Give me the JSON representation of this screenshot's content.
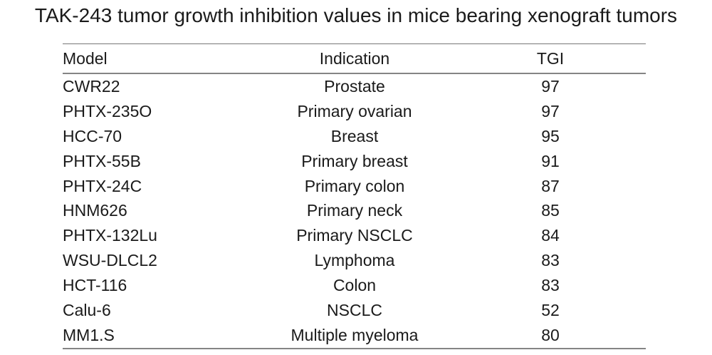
{
  "title": "TAK-243 tumor growth inhibition values in mice bearing xenograft tumors",
  "colors": {
    "background": "#ffffff",
    "text": "#1a1a1a",
    "rule_top": "#777777",
    "rule_heavy": "#858585"
  },
  "chart_data": {
    "type": "table",
    "title": "TAK-243 tumor growth inhibition values in mice bearing xenograft tumors",
    "columns": [
      "Model",
      "Indication",
      "TGI"
    ],
    "rows": [
      [
        "CWR22",
        "Prostate",
        "97"
      ],
      [
        "PHTX-235O",
        "Primary ovarian",
        "97"
      ],
      [
        "HCC-70",
        "Breast",
        "95"
      ],
      [
        "PHTX-55B",
        "Primary breast",
        "91"
      ],
      [
        "PHTX-24C",
        "Primary colon",
        "87"
      ],
      [
        "HNM626",
        "Primary neck",
        "85"
      ],
      [
        "PHTX-132Lu",
        "Primary NSCLC",
        "84"
      ],
      [
        "WSU-DLCL2",
        "Lymphoma",
        "83"
      ],
      [
        "HCT-116",
        "Colon",
        "83"
      ],
      [
        "Calu-6",
        "NSCLC",
        "52"
      ],
      [
        "MM1.S",
        "Multiple myeloma",
        "80"
      ]
    ],
    "layout": {
      "header_rule_above": true,
      "header_rule_below": true,
      "bottom_rule": true,
      "column_alignment": [
        "left",
        "center",
        "center"
      ]
    }
  }
}
